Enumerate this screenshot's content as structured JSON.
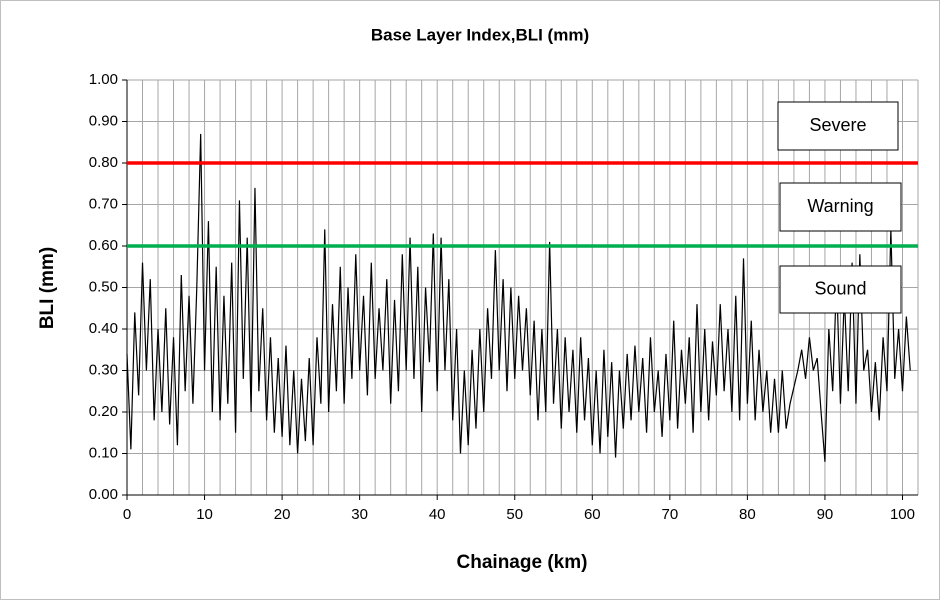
{
  "chart_data": {
    "type": "line",
    "title": "Base Layer Index,BLI (mm)",
    "xlabel": "Chainage (km)",
    "ylabel": "BLI (mm)",
    "xlim": [
      0,
      102
    ],
    "ylim": [
      0,
      1
    ],
    "xticks": [
      0,
      10,
      20,
      30,
      40,
      50,
      60,
      70,
      80,
      90,
      100
    ],
    "yticks": [
      {
        "value": 0,
        "label": "0.00"
      },
      {
        "value": 0.1,
        "label": "0.10"
      },
      {
        "value": 0.2,
        "label": "0.20"
      },
      {
        "value": 0.3,
        "label": "0.30"
      },
      {
        "value": 0.4,
        "label": "0.40"
      },
      {
        "value": 0.5,
        "label": "0.50"
      },
      {
        "value": 0.6,
        "label": "0.60"
      },
      {
        "value": 0.7,
        "label": "0.70"
      },
      {
        "value": 0.8,
        "label": "0.80"
      },
      {
        "value": 0.9,
        "label": "0.90"
      },
      {
        "value": 1,
        "label": "1.00"
      }
    ],
    "grid": true,
    "minor_grid_step": 2,
    "thresholds": [
      {
        "value": 0.8,
        "color": "#ff0000"
      },
      {
        "value": 0.6,
        "color": "#00b050"
      }
    ],
    "annotations": [
      "Severe",
      "Warning",
      "Sound"
    ],
    "series": [
      {
        "color": "#000000",
        "x": [
          0,
          0.5,
          1,
          1.5,
          2,
          2.5,
          3,
          3.5,
          4,
          4.5,
          5,
          5.5,
          6,
          6.5,
          7,
          7.5,
          8,
          8.5,
          9,
          9.5,
          10,
          10.5,
          11,
          11.5,
          12,
          12.5,
          13,
          13.5,
          14,
          14.5,
          15,
          15.5,
          16,
          16.5,
          17,
          17.5,
          18,
          18.5,
          19,
          19.5,
          20,
          20.5,
          21,
          21.5,
          22,
          22.5,
          23,
          23.5,
          24,
          24.5,
          25,
          25.5,
          26,
          26.5,
          27,
          27.5,
          28,
          28.5,
          29,
          29.5,
          30,
          30.5,
          31,
          31.5,
          32,
          32.5,
          33,
          33.5,
          34,
          34.5,
          35,
          35.5,
          36,
          36.5,
          37,
          37.5,
          38,
          38.5,
          39,
          39.5,
          40,
          40.5,
          41,
          41.5,
          42,
          42.5,
          43,
          43.5,
          44,
          44.5,
          45,
          45.5,
          46,
          46.5,
          47,
          47.5,
          48,
          48.5,
          49,
          49.5,
          50,
          50.5,
          51,
          51.5,
          52,
          52.5,
          53,
          53.5,
          54,
          54.5,
          55,
          55.5,
          56,
          56.5,
          57,
          57.5,
          58,
          58.5,
          59,
          59.5,
          60,
          60.5,
          61,
          61.5,
          62,
          62.5,
          63,
          63.5,
          64,
          64.5,
          65,
          65.5,
          66,
          66.5,
          67,
          67.5,
          68,
          68.5,
          69,
          69.5,
          70,
          70.5,
          71,
          71.5,
          72,
          72.5,
          73,
          73.5,
          74,
          74.5,
          75,
          75.5,
          76,
          76.5,
          77,
          77.5,
          78,
          78.5,
          79,
          79.5,
          80,
          80.5,
          81,
          81.5,
          82,
          82.5,
          83,
          83.5,
          84,
          84.5,
          85,
          85.5,
          86,
          86.5,
          87,
          87.5,
          88,
          88.5,
          89,
          89.5,
          90,
          90.5,
          91,
          91.5,
          92,
          92.5,
          93,
          93.5,
          94,
          94.5,
          95,
          95.5,
          96,
          96.5,
          97,
          97.5,
          98,
          98.5,
          99,
          99.5,
          100,
          100.5,
          101
        ],
        "values": [
          0.34,
          0.11,
          0.44,
          0.24,
          0.56,
          0.3,
          0.52,
          0.18,
          0.4,
          0.2,
          0.45,
          0.17,
          0.38,
          0.12,
          0.53,
          0.25,
          0.48,
          0.22,
          0.5,
          0.87,
          0.3,
          0.66,
          0.2,
          0.55,
          0.18,
          0.48,
          0.22,
          0.56,
          0.15,
          0.71,
          0.28,
          0.62,
          0.2,
          0.74,
          0.25,
          0.45,
          0.18,
          0.38,
          0.15,
          0.33,
          0.14,
          0.36,
          0.12,
          0.3,
          0.1,
          0.28,
          0.13,
          0.33,
          0.12,
          0.38,
          0.22,
          0.64,
          0.2,
          0.46,
          0.25,
          0.55,
          0.22,
          0.5,
          0.28,
          0.58,
          0.3,
          0.48,
          0.24,
          0.56,
          0.28,
          0.45,
          0.3,
          0.52,
          0.22,
          0.47,
          0.25,
          0.58,
          0.3,
          0.62,
          0.28,
          0.55,
          0.2,
          0.5,
          0.32,
          0.63,
          0.25,
          0.62,
          0.3,
          0.52,
          0.18,
          0.4,
          0.1,
          0.3,
          0.12,
          0.35,
          0.16,
          0.4,
          0.2,
          0.45,
          0.28,
          0.59,
          0.3,
          0.52,
          0.25,
          0.5,
          0.28,
          0.48,
          0.3,
          0.45,
          0.24,
          0.42,
          0.18,
          0.4,
          0.2,
          0.61,
          0.22,
          0.4,
          0.16,
          0.38,
          0.2,
          0.35,
          0.15,
          0.38,
          0.18,
          0.33,
          0.12,
          0.3,
          0.1,
          0.35,
          0.14,
          0.32,
          0.09,
          0.3,
          0.16,
          0.34,
          0.18,
          0.36,
          0.2,
          0.33,
          0.15,
          0.38,
          0.2,
          0.3,
          0.14,
          0.34,
          0.18,
          0.42,
          0.16,
          0.35,
          0.22,
          0.38,
          0.15,
          0.46,
          0.2,
          0.4,
          0.18,
          0.37,
          0.24,
          0.46,
          0.25,
          0.4,
          0.2,
          0.48,
          0.18,
          0.57,
          0.22,
          0.42,
          0.18,
          0.35,
          0.2,
          0.3,
          0.15,
          0.28,
          0.15,
          0.3,
          0.16,
          0.22,
          0.26,
          0.3,
          0.35,
          0.28,
          0.38,
          0.3,
          0.33,
          0.2,
          0.08,
          0.4,
          0.25,
          0.52,
          0.22,
          0.48,
          0.25,
          0.56,
          0.22,
          0.58,
          0.3,
          0.35,
          0.2,
          0.32,
          0.18,
          0.38,
          0.25,
          0.64,
          0.28,
          0.4,
          0.25,
          0.43,
          0.3
        ]
      }
    ]
  }
}
